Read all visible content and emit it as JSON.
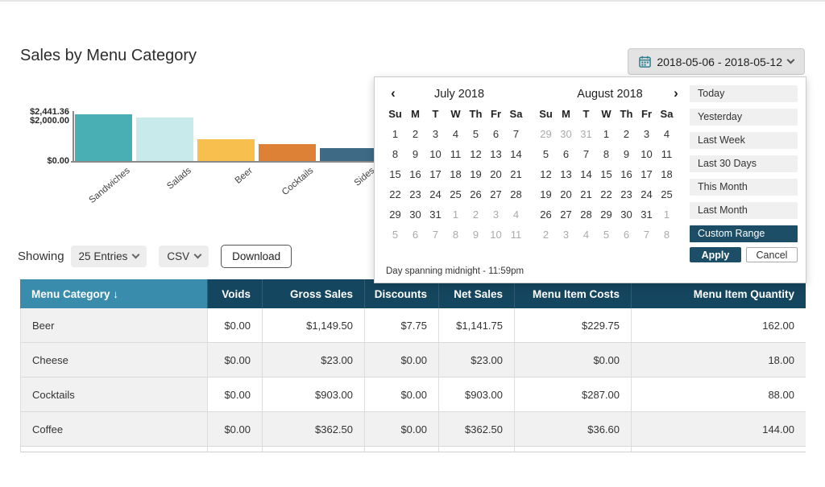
{
  "header": {
    "title": "Sales by Menu Category",
    "date_range": "2018-05-06 - 2018-05-12"
  },
  "chart_data": {
    "type": "bar",
    "title": "Sales by Menu Category",
    "categories": [
      "Sandwiches",
      "Salads",
      "Beer",
      "Cocktails",
      "Sides"
    ],
    "values": [
      2441.36,
      2275.0,
      1149.5,
      903.0,
      660.0
    ],
    "bar_colors": [
      "#4aafb5",
      "#c8eaea",
      "#f7bf4e",
      "#dd8136",
      "#3e6a85"
    ],
    "y_axis_labels": [
      "$2,441.36",
      "$2,000.00",
      "$0.00"
    ],
    "ylim": [
      0,
      2441.36
    ],
    "xlabel": "",
    "ylabel": "",
    "grid": false,
    "legend": false
  },
  "date_picker_popup": {
    "prev_arrow": "‹",
    "next_arrow": "›",
    "day_headers": [
      "Su",
      "M",
      "T",
      "W",
      "Th",
      "Fr",
      "Sa"
    ],
    "months": [
      {
        "title": "July 2018",
        "cells": [
          {
            "v": 1
          },
          {
            "v": 2
          },
          {
            "v": 3
          },
          {
            "v": 4
          },
          {
            "v": 5
          },
          {
            "v": 6
          },
          {
            "v": 7
          },
          {
            "v": 8
          },
          {
            "v": 9
          },
          {
            "v": 10
          },
          {
            "v": 11
          },
          {
            "v": 12
          },
          {
            "v": 13
          },
          {
            "v": 14
          },
          {
            "v": 15
          },
          {
            "v": 16
          },
          {
            "v": 17
          },
          {
            "v": 18
          },
          {
            "v": 19
          },
          {
            "v": 20
          },
          {
            "v": 21
          },
          {
            "v": 22
          },
          {
            "v": 23
          },
          {
            "v": 24
          },
          {
            "v": 25
          },
          {
            "v": 26
          },
          {
            "v": 27
          },
          {
            "v": 28
          },
          {
            "v": 29
          },
          {
            "v": 30
          },
          {
            "v": 31
          },
          {
            "v": 1,
            "m": true
          },
          {
            "v": 2,
            "m": true
          },
          {
            "v": 3,
            "m": true
          },
          {
            "v": 4,
            "m": true
          },
          {
            "v": 5,
            "m": true
          },
          {
            "v": 6,
            "m": true
          },
          {
            "v": 7,
            "m": true
          },
          {
            "v": 8,
            "m": true
          },
          {
            "v": 9,
            "m": true
          },
          {
            "v": 10,
            "m": true
          },
          {
            "v": 11,
            "m": true
          }
        ]
      },
      {
        "title": "August 2018",
        "cells": [
          {
            "v": 29,
            "m": true
          },
          {
            "v": 30,
            "m": true
          },
          {
            "v": 31,
            "m": true
          },
          {
            "v": 1
          },
          {
            "v": 2
          },
          {
            "v": 3
          },
          {
            "v": 4
          },
          {
            "v": 5
          },
          {
            "v": 6
          },
          {
            "v": 7
          },
          {
            "v": 8
          },
          {
            "v": 9
          },
          {
            "v": 10
          },
          {
            "v": 11
          },
          {
            "v": 12
          },
          {
            "v": 13
          },
          {
            "v": 14
          },
          {
            "v": 15
          },
          {
            "v": 16
          },
          {
            "v": 17
          },
          {
            "v": 18
          },
          {
            "v": 19
          },
          {
            "v": 20
          },
          {
            "v": 21
          },
          {
            "v": 22
          },
          {
            "v": 23
          },
          {
            "v": 24
          },
          {
            "v": 25
          },
          {
            "v": 26
          },
          {
            "v": 27
          },
          {
            "v": 28
          },
          {
            "v": 29
          },
          {
            "v": 30
          },
          {
            "v": 31
          },
          {
            "v": 1,
            "m": true
          },
          {
            "v": 2,
            "m": true
          },
          {
            "v": 3,
            "m": true
          },
          {
            "v": 4,
            "m": true
          },
          {
            "v": 5,
            "m": true
          },
          {
            "v": 6,
            "m": true
          },
          {
            "v": 7,
            "m": true
          },
          {
            "v": 8,
            "m": true
          }
        ]
      }
    ],
    "presets": [
      "Today",
      "Yesterday",
      "Last Week",
      "Last 30 Days",
      "This Month",
      "Last Month"
    ],
    "custom_range": "Custom Range",
    "apply": "Apply",
    "cancel": "Cancel",
    "footnote": "Day spanning midnight - 11:59pm"
  },
  "controls": {
    "showing": "Showing",
    "entries": "25 Entries",
    "csv": "CSV",
    "download": "Download"
  },
  "table": {
    "columns": [
      {
        "label": "Menu Category ↓",
        "align": "left"
      },
      {
        "label": "Voids",
        "align": "right"
      },
      {
        "label": "Gross Sales",
        "align": "right"
      },
      {
        "label": "Discounts",
        "align": "right"
      },
      {
        "label": "Net Sales",
        "align": "right"
      },
      {
        "label": "Menu Item Costs",
        "align": "right"
      },
      {
        "label": "Menu Item Quantity",
        "align": "right"
      }
    ],
    "rows": [
      [
        "Beer",
        "$0.00",
        "$1,149.50",
        "$7.75",
        "$1,141.75",
        "$229.75",
        "162.00"
      ],
      [
        "Cheese",
        "$0.00",
        "$23.00",
        "$0.00",
        "$23.00",
        "$0.00",
        "18.00"
      ],
      [
        "Cocktails",
        "$0.00",
        "$903.00",
        "$0.00",
        "$903.00",
        "$287.00",
        "88.00"
      ],
      [
        "Coffee",
        "$0.00",
        "$362.50",
        "$0.00",
        "$362.50",
        "$36.60",
        "144.00"
      ]
    ]
  },
  "colors": {
    "accent_teal": "#4aafb5",
    "navy": "#1d4e68",
    "table_header_dark": "#15465f",
    "table_header_light": "#3a8cac",
    "calendar_icon_teal": "#2e7e8e"
  }
}
